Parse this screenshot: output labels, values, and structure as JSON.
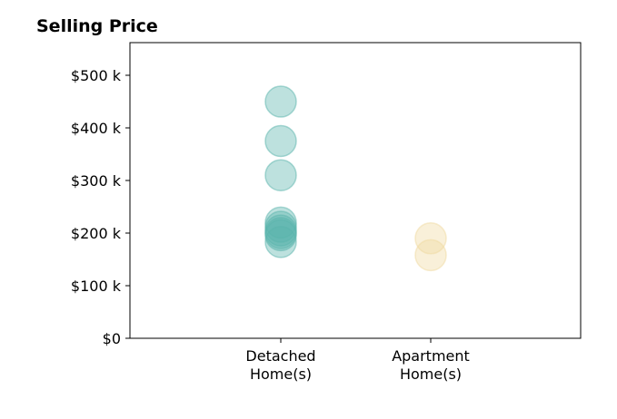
{
  "chart_data": {
    "type": "scatter",
    "title": "Selling Price",
    "xlabel": "",
    "ylabel": "",
    "categories": [
      [
        "Detached",
        "Home(s)"
      ],
      [
        "Apartment",
        "Home(s)"
      ]
    ],
    "y_ticks": [
      {
        "value": 0,
        "label": "$0"
      },
      {
        "value": 100000,
        "label": "$100 k"
      },
      {
        "value": 200000,
        "label": "$200 k"
      },
      {
        "value": 300000,
        "label": "$300 k"
      },
      {
        "value": 400000,
        "label": "$400 k"
      },
      {
        "value": 500000,
        "label": "$500 k"
      }
    ],
    "ylim": [
      0,
      560000
    ],
    "grid": false,
    "series": [
      {
        "category": "Detached Home(s)",
        "color": "#5ab4ac",
        "values": [
          450000,
          375000,
          310000,
          220000,
          212000,
          205000,
          200000,
          196000,
          183000
        ]
      },
      {
        "category": "Apartment Home(s)",
        "color": "#f0d9a0",
        "values": [
          190000,
          158000
        ]
      }
    ]
  }
}
